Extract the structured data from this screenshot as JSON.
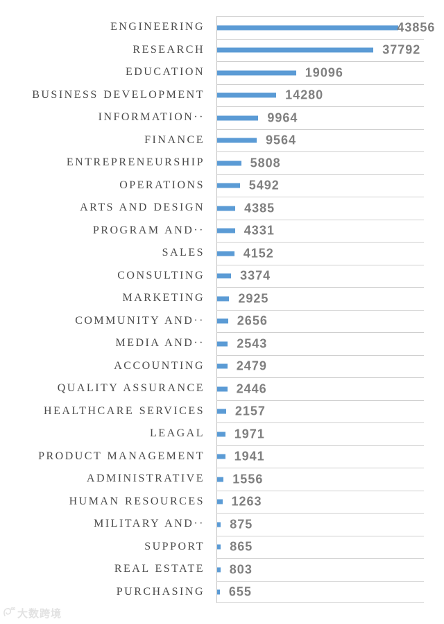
{
  "chart_data": {
    "type": "bar",
    "orientation": "horizontal",
    "title": "",
    "xlabel": "",
    "ylabel": "",
    "xlim": [
      0,
      50000
    ],
    "grid": true,
    "legend": false,
    "data_labels": "outside-end",
    "categories": [
      "ENGINEERING",
      "RESEARCH",
      "EDUCATION",
      "BUSINESS DEVELOPMENT",
      "INFORMATION··",
      "FINANCE",
      "ENTREPRENEURSHIP",
      "OPERATIONS",
      "ARTS AND DESIGN",
      "PROGRAM AND··",
      "SALES",
      "CONSULTING",
      "MARKETING",
      "COMMUNITY AND··",
      "MEDIA AND··",
      "ACCOUNTING",
      "QUALITY ASSURANCE",
      "HEALTHCARE SERVICES",
      "LEAGAL",
      "PRODUCT MANAGEMENT",
      "ADMINISTRATIVE",
      "HUMAN RESOURCES",
      "MILITARY AND··",
      "SUPPORT",
      "REAL ESTATE",
      "PURCHASING"
    ],
    "values": [
      43856,
      37792,
      19096,
      14280,
      9964,
      9564,
      5808,
      5492,
      4385,
      4331,
      4152,
      3374,
      2925,
      2656,
      2543,
      2479,
      2446,
      2157,
      1971,
      1941,
      1556,
      1263,
      875,
      865,
      803,
      655
    ],
    "colors": {
      "bar": "#5b9bd5",
      "value_label": "#7f7f7f",
      "category_label": "#4a4a4a",
      "gridline": "#cfcfcf",
      "axis_line": "#c2c2c2"
    }
  },
  "watermark": {
    "text": "大数跨境"
  }
}
